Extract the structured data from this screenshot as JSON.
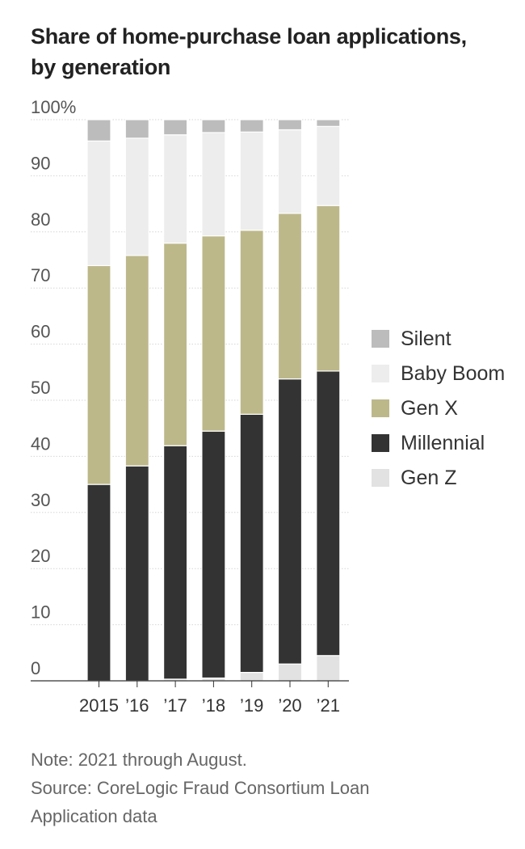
{
  "title_lines": [
    "Share of home-purchase loan applications,",
    "by generation"
  ],
  "notes": {
    "note": "Note: 2021 through August.",
    "source_lines": [
      "Source: CoreLogic Fraud Consortium Loan",
      "Application data"
    ]
  },
  "chart_data": {
    "type": "bar",
    "stacked": true,
    "title": "Share of home-purchase loan applications, by generation",
    "categories": [
      "2015",
      "’16",
      "’17",
      "’18",
      "’19",
      "’20",
      "’21"
    ],
    "ylim": [
      0,
      100
    ],
    "y_ticks": [
      0,
      10,
      20,
      30,
      40,
      50,
      60,
      70,
      80,
      90,
      100
    ],
    "y_tick_labels": [
      "0",
      "10",
      "20",
      "30",
      "40",
      "50",
      "60",
      "70",
      "80",
      "90",
      "100%"
    ],
    "grid": true,
    "legend_position": "right",
    "series": [
      {
        "name": "Gen Z",
        "color": "#e2e2e2",
        "values": [
          0,
          0,
          0.3,
          0.5,
          1.5,
          3,
          4.5
        ]
      },
      {
        "name": "Millennial",
        "color": "#333333",
        "values": [
          35,
          38.3,
          41.6,
          44,
          46,
          50.8,
          50.7
        ]
      },
      {
        "name": "Gen X",
        "color": "#bdb88a",
        "values": [
          39,
          37.5,
          36.1,
          34.8,
          32.8,
          29.5,
          29.5
        ]
      },
      {
        "name": "Baby Boom",
        "color": "#ededed",
        "values": [
          22.2,
          20.9,
          19.3,
          18.4,
          17.5,
          14.9,
          14.1
        ]
      },
      {
        "name": "Silent",
        "color": "#bcbcbc",
        "values": [
          3.8,
          3.3,
          2.7,
          2.3,
          2.2,
          1.8,
          1.2
        ]
      }
    ],
    "legend_order": [
      "Silent",
      "Baby Boom",
      "Gen X",
      "Millennial",
      "Gen Z"
    ]
  }
}
